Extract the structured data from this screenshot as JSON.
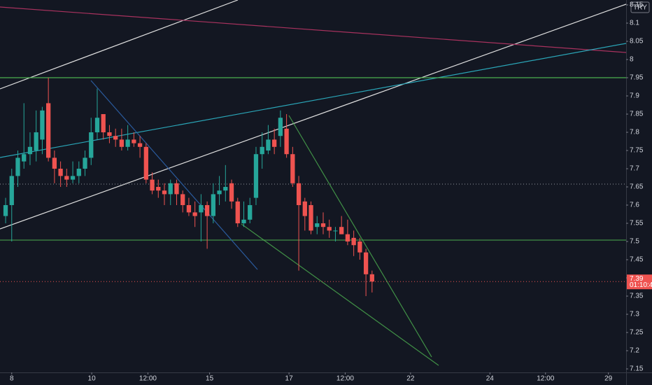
{
  "chart_data": {
    "type": "candlestick",
    "currency": "TRY",
    "up_color": "#26a69a",
    "down_color": "#ef5350",
    "open": [
      7.57,
      7.6,
      7.68,
      7.72,
      7.74,
      7.75,
      7.78,
      7.88,
      7.73,
      7.7,
      7.68,
      7.67,
      7.68,
      7.7,
      7.73,
      7.8,
      7.85,
      7.8,
      7.79,
      7.78,
      7.76,
      7.78,
      7.77,
      7.76,
      7.67,
      7.65,
      7.64,
      7.63,
      7.66,
      7.63,
      7.6,
      7.58,
      7.58,
      7.6,
      7.57,
      7.63,
      7.64,
      7.66,
      7.61,
      7.55,
      7.56,
      7.62,
      7.74,
      7.75,
      7.78,
      7.79,
      7.81,
      7.74,
      7.66,
      7.61,
      7.6,
      7.54,
      7.55,
      7.54,
      7.53,
      7.54,
      7.52,
      7.51,
      7.5,
      7.47,
      7.41
    ],
    "high": [
      7.62,
      7.7,
      7.75,
      7.88,
      7.8,
      7.86,
      7.87,
      7.95,
      7.75,
      7.72,
      7.7,
      7.72,
      7.72,
      7.75,
      7.84,
      7.92,
      7.85,
      7.82,
      7.81,
      7.81,
      7.82,
      7.8,
      7.79,
      7.77,
      7.69,
      7.67,
      7.66,
      7.67,
      7.67,
      7.64,
      7.62,
      7.61,
      7.63,
      7.61,
      7.66,
      7.68,
      7.71,
      7.67,
      7.62,
      7.61,
      7.62,
      7.76,
      7.8,
      7.82,
      7.81,
      7.86,
      7.85,
      7.76,
      7.68,
      7.62,
      7.61,
      7.57,
      7.58,
      7.56,
      7.54,
      7.57,
      7.56,
      7.53,
      7.51,
      7.48,
      7.42
    ],
    "low": [
      7.55,
      7.5,
      7.65,
      7.7,
      7.71,
      7.72,
      7.74,
      7.72,
      7.66,
      7.65,
      7.65,
      7.66,
      7.66,
      7.68,
      7.71,
      7.78,
      7.78,
      7.77,
      7.76,
      7.75,
      7.75,
      7.76,
      7.73,
      7.66,
      7.63,
      7.62,
      7.6,
      7.6,
      7.6,
      7.58,
      7.57,
      7.54,
      7.5,
      7.48,
      7.55,
      7.6,
      7.61,
      7.59,
      7.54,
      7.54,
      7.55,
      7.6,
      7.7,
      7.74,
      7.74,
      7.76,
      7.73,
      7.65,
      7.42,
      7.53,
      7.52,
      7.52,
      7.52,
      7.51,
      7.5,
      7.52,
      7.49,
      7.46,
      7.45,
      7.35,
      7.36
    ],
    "close": [
      7.6,
      7.68,
      7.73,
      7.74,
      7.76,
      7.8,
      7.86,
      7.73,
      7.7,
      7.68,
      7.67,
      7.68,
      7.7,
      7.73,
      7.8,
      7.84,
      7.8,
      7.79,
      7.78,
      7.76,
      7.78,
      7.77,
      7.76,
      7.67,
      7.64,
      7.64,
      7.63,
      7.66,
      7.63,
      7.6,
      7.58,
      7.57,
      7.6,
      7.57,
      7.63,
      7.64,
      7.65,
      7.61,
      7.55,
      7.56,
      7.6,
      7.74,
      7.76,
      7.78,
      7.76,
      7.84,
      7.74,
      7.66,
      7.6,
      7.57,
      7.53,
      7.55,
      7.54,
      7.53,
      7.53,
      7.52,
      7.5,
      7.49,
      7.47,
      7.41,
      7.39
    ],
    "last_price": 7.39,
    "countdown": "01:10:4",
    "ylim": [
      7.1404,
      8.1635
    ],
    "yticks": [
      7.15,
      7.2,
      7.25,
      7.3,
      7.35,
      7.4,
      7.45,
      7.5,
      7.55,
      7.6,
      7.65,
      7.7,
      7.75,
      7.8,
      7.85,
      7.9,
      7.95,
      8,
      8.05,
      8.1,
      8.15
    ],
    "xlim": [
      -0.92,
      101.6
    ],
    "xticks": [
      {
        "value": 1,
        "label": "8"
      },
      {
        "value": 14.1,
        "label": "10"
      },
      {
        "value": 23.3,
        "label": "12:00"
      },
      {
        "value": 33.4,
        "label": "15"
      },
      {
        "value": 46.4,
        "label": "17"
      },
      {
        "value": 55.6,
        "label": "12:00"
      },
      {
        "value": 66.3,
        "label": "22"
      },
      {
        "value": 79.3,
        "label": "24"
      },
      {
        "value": 88.4,
        "label": "12:00"
      },
      {
        "value": 98.7,
        "label": "29"
      }
    ]
  }
}
